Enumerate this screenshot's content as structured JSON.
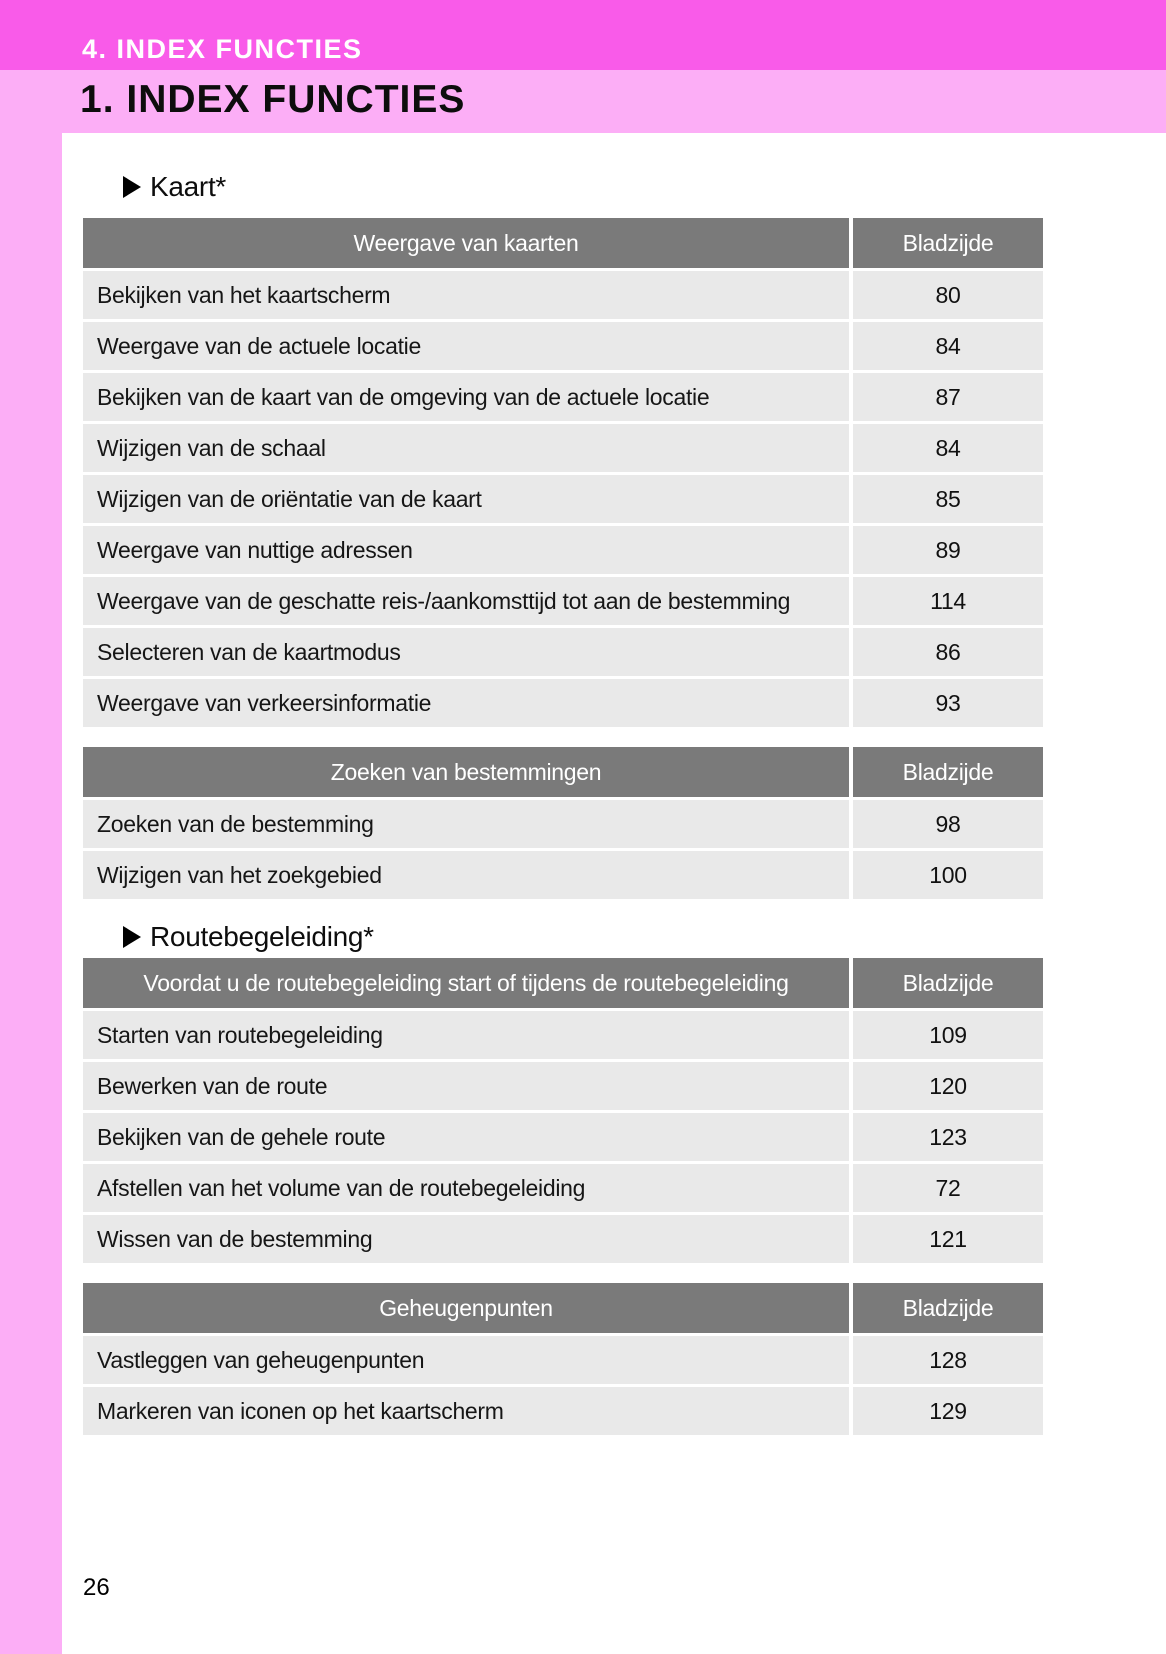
{
  "banner": {
    "chapter": "4. INDEX FUNCTIES"
  },
  "title": "1. INDEX FUNCTIES",
  "footer": {
    "page_number": "26"
  },
  "colors": {
    "banner_magenta": "#f95be9",
    "banner_pink": "#fcaef6",
    "table_header_gray": "#7a7a7a",
    "table_row_gray": "#e9e9e9"
  },
  "sections": [
    {
      "heading": "Kaart*",
      "tables": [
        {
          "title": "Weergave van kaarten",
          "page_header": "Bladzijde",
          "rows": [
            {
              "label": "Bekijken van het kaartscherm",
              "page": "80"
            },
            {
              "label": "Weergave van de actuele locatie",
              "page": "84"
            },
            {
              "label": "Bekijken van de kaart van de omgeving van de actuele locatie",
              "page": "87"
            },
            {
              "label": "Wijzigen van de schaal",
              "page": "84"
            },
            {
              "label": "Wijzigen van de oriëntatie van de kaart",
              "page": "85"
            },
            {
              "label": "Weergave van nuttige adressen",
              "page": "89"
            },
            {
              "label": "Weergave van de geschatte reis-/aankomsttijd tot aan de bestemming",
              "page": "114"
            },
            {
              "label": "Selecteren van de kaartmodus",
              "page": "86"
            },
            {
              "label": "Weergave van verkeersinformatie",
              "page": "93"
            }
          ]
        },
        {
          "title": "Zoeken van bestemmingen",
          "page_header": "Bladzijde",
          "rows": [
            {
              "label": "Zoeken van de bestemming",
              "page": "98"
            },
            {
              "label": "Wijzigen van het zoekgebied",
              "page": "100"
            }
          ]
        }
      ]
    },
    {
      "heading": "Routebegeleiding*",
      "tables": [
        {
          "title": "Voordat u de routebegeleiding start of tijdens de routebegeleiding",
          "page_header": "Bladzijde",
          "rows": [
            {
              "label": "Starten van routebegeleiding",
              "page": "109"
            },
            {
              "label": "Bewerken van de route",
              "page": "120"
            },
            {
              "label": "Bekijken van de gehele route",
              "page": "123"
            },
            {
              "label": "Afstellen van het volume van de routebegeleiding",
              "page": "72"
            },
            {
              "label": "Wissen van de bestemming",
              "page": "121"
            }
          ]
        },
        {
          "title": "Geheugenpunten",
          "page_header": "Bladzijde",
          "rows": [
            {
              "label": "Vastleggen van geheugenpunten",
              "page": "128"
            },
            {
              "label": "Markeren van iconen op het kaartscherm",
              "page": "129"
            }
          ]
        }
      ]
    }
  ]
}
